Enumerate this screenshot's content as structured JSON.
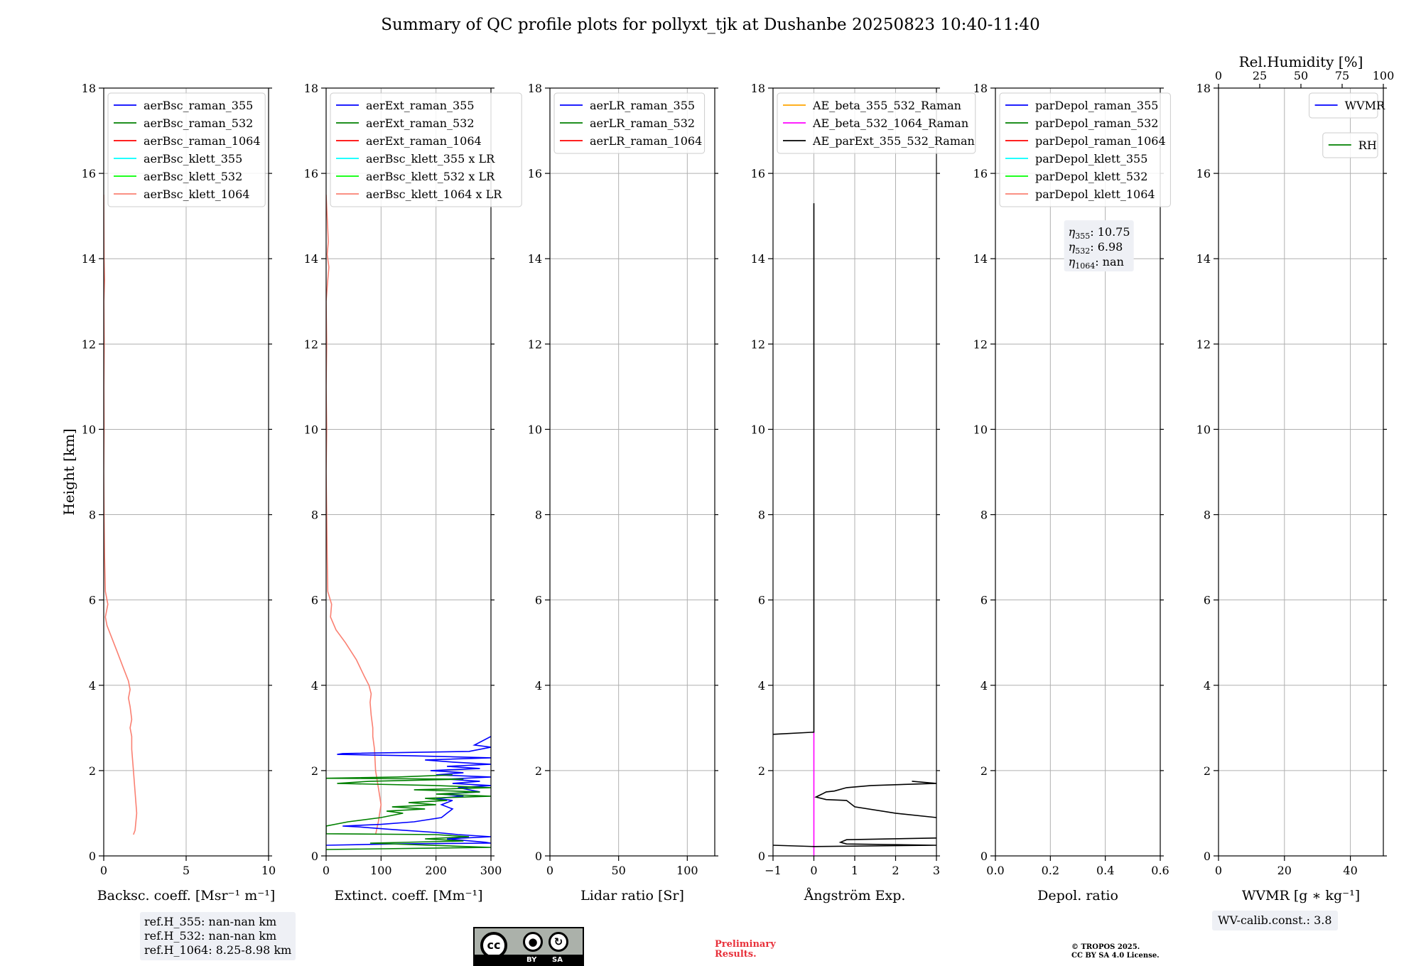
{
  "figure": {
    "title": "Summary of QC profile plots for pollyxt_tjk at Dushanbe 20250823 10:40-11:40",
    "ref_heights": [
      "ref.H_355: nan-nan km",
      "ref.H_532: nan-nan km",
      "ref.H_1064: 8.25-8.98 km"
    ],
    "wv_calib": "WV-calib.const.: 3.8",
    "preliminary": [
      "Preliminary",
      "Results."
    ],
    "copyright": [
      "© TROPOS 2025.",
      "CC BY SA 4.0 License."
    ],
    "license_logo": {
      "cc": "cc",
      "by": "BY",
      "sa": "SA"
    },
    "colors": {
      "blue": "#0000ff",
      "green": "#008000",
      "red": "#ff0000",
      "cyan": "#00ffff",
      "lime": "#00ff00",
      "salmon": "#fa8072",
      "orange": "#ffa500",
      "magenta": "#ff00ff",
      "black": "#000000",
      "grid": "#b0b0b0"
    }
  },
  "chart_data": [
    {
      "type": "line",
      "xlabel": "Backsc. coeff. [Msr⁻¹ m⁻¹]",
      "ylabel": "Height [km]",
      "xlim": [
        0,
        10
      ],
      "ylim": [
        0,
        18
      ],
      "xticks": [
        0,
        5,
        10
      ],
      "yticks": [
        0,
        2,
        4,
        6,
        8,
        10,
        12,
        14,
        16,
        18
      ],
      "grid": true,
      "legend_position": "top-left",
      "legend": [
        "aerBsc_raman_355",
        "aerBsc_raman_532",
        "aerBsc_raman_1064",
        "aerBsc_klett_355",
        "aerBsc_klett_532",
        "aerBsc_klett_1064"
      ],
      "legend_colors": [
        "#0000ff",
        "#008000",
        "#ff0000",
        "#00ffff",
        "#00ff00",
        "#fa8072"
      ],
      "series": [
        {
          "color": "#fa8072",
          "points": [
            [
              1.8,
              0.5
            ],
            [
              1.9,
              0.6
            ],
            [
              2.0,
              1.0
            ],
            [
              1.9,
              1.5
            ],
            [
              1.8,
              2.0
            ],
            [
              1.7,
              2.5
            ],
            [
              1.7,
              2.8
            ],
            [
              1.6,
              3.0
            ],
            [
              1.7,
              3.2
            ],
            [
              1.6,
              3.5
            ],
            [
              1.5,
              3.7
            ],
            [
              1.6,
              3.9
            ],
            [
              1.5,
              4.1
            ],
            [
              1.2,
              4.4
            ],
            [
              0.8,
              4.8
            ],
            [
              0.5,
              5.1
            ],
            [
              0.2,
              5.4
            ],
            [
              0.1,
              5.6
            ],
            [
              0.25,
              5.9
            ],
            [
              0.1,
              6.2
            ],
            [
              0.05,
              7.0
            ],
            [
              0.02,
              8.0
            ],
            [
              0.0,
              9.0
            ],
            [
              0.02,
              10.0
            ],
            [
              0.01,
              11.0
            ],
            [
              0.03,
              12.0
            ],
            [
              0.01,
              13.0
            ],
            [
              0.05,
              13.5
            ],
            [
              0.02,
              14.0
            ],
            [
              0.0,
              15.5
            ]
          ]
        }
      ]
    },
    {
      "type": "line",
      "xlabel": "Extinct. coeff. [Mm⁻¹]",
      "xlim": [
        0,
        300
      ],
      "ylim": [
        0,
        18
      ],
      "xticks": [
        0,
        100,
        200,
        300
      ],
      "yticks": [
        0,
        2,
        4,
        6,
        8,
        10,
        12,
        14,
        16,
        18
      ],
      "grid": true,
      "legend_position": "top-left",
      "legend": [
        "aerExt_raman_355",
        "aerExt_raman_532",
        "aerExt_raman_1064",
        "aerBsc_klett_355 x LR",
        "aerBsc_klett_532 x LR",
        "aerBsc_klett_1064 x LR"
      ],
      "legend_colors": [
        "#0000ff",
        "#008000",
        "#ff0000",
        "#00ffff",
        "#00ff00",
        "#fa8072"
      ],
      "series": [
        {
          "color": "#fa8072",
          "points": [
            [
              90,
              0.5
            ],
            [
              95,
              0.8
            ],
            [
              100,
              1.2
            ],
            [
              95,
              1.6
            ],
            [
              90,
              2.0
            ],
            [
              88,
              2.5
            ],
            [
              85,
              2.8
            ],
            [
              85,
              3.0
            ],
            [
              82,
              3.3
            ],
            [
              80,
              3.6
            ],
            [
              82,
              3.8
            ],
            [
              78,
              4.0
            ],
            [
              70,
              4.2
            ],
            [
              55,
              4.6
            ],
            [
              35,
              5.0
            ],
            [
              18,
              5.3
            ],
            [
              8,
              5.6
            ],
            [
              10,
              5.9
            ],
            [
              3,
              6.2
            ],
            [
              2,
              7.0
            ],
            [
              1,
              8.0
            ],
            [
              0,
              9.0
            ],
            [
              1,
              10.0
            ],
            [
              0,
              11.0
            ],
            [
              1,
              12.0
            ],
            [
              0,
              13.0
            ],
            [
              3,
              13.5
            ],
            [
              5,
              13.8
            ],
            [
              2,
              14.1
            ],
            [
              4,
              14.4
            ],
            [
              0,
              15.5
            ]
          ]
        },
        {
          "color": "#0000ff",
          "points": [
            [
              0,
              0.25
            ],
            [
              120,
              0.28
            ],
            [
              300,
              0.3
            ],
            [
              290,
              0.32
            ],
            [
              220,
              0.4
            ],
            [
              300,
              0.45
            ],
            [
              240,
              0.5
            ],
            [
              200,
              0.55
            ],
            [
              120,
              0.62
            ],
            [
              60,
              0.68
            ],
            [
              30,
              0.7
            ],
            [
              100,
              0.74
            ],
            [
              160,
              0.8
            ],
            [
              210,
              0.9
            ],
            [
              220,
              1.0
            ],
            [
              230,
              1.1
            ],
            [
              210,
              1.2
            ],
            [
              230,
              1.3
            ],
            [
              200,
              1.35
            ],
            [
              250,
              1.4
            ],
            [
              210,
              1.45
            ],
            [
              280,
              1.5
            ],
            [
              240,
              1.6
            ],
            [
              300,
              1.65
            ],
            [
              230,
              1.7
            ],
            [
              280,
              1.75
            ],
            [
              220,
              1.8
            ],
            [
              300,
              1.85
            ],
            [
              200,
              1.9
            ],
            [
              250,
              1.95
            ],
            [
              190,
              2.0
            ],
            [
              280,
              2.05
            ],
            [
              220,
              2.1
            ],
            [
              300,
              2.15
            ],
            [
              230,
              2.2
            ],
            [
              180,
              2.25
            ],
            [
              300,
              2.3
            ],
            [
              150,
              2.35
            ],
            [
              20,
              2.38
            ],
            [
              30,
              2.4
            ],
            [
              260,
              2.45
            ],
            [
              300,
              2.55
            ],
            [
              270,
              2.6
            ],
            [
              300,
              2.8
            ]
          ]
        },
        {
          "color": "#008000",
          "points": [
            [
              0,
              0.15
            ],
            [
              300,
              0.2
            ],
            [
              80,
              0.3
            ],
            [
              250,
              0.35
            ],
            [
              180,
              0.4
            ],
            [
              260,
              0.45
            ],
            [
              200,
              0.5
            ],
            [
              0,
              0.52
            ],
            [
              0,
              0.7
            ],
            [
              40,
              0.8
            ],
            [
              100,
              0.9
            ],
            [
              140,
              1.0
            ],
            [
              110,
              1.05
            ],
            [
              180,
              1.1
            ],
            [
              120,
              1.15
            ],
            [
              200,
              1.2
            ],
            [
              150,
              1.25
            ],
            [
              220,
              1.3
            ],
            [
              180,
              1.35
            ],
            [
              300,
              1.4
            ],
            [
              200,
              1.45
            ],
            [
              280,
              1.5
            ],
            [
              160,
              1.55
            ],
            [
              300,
              1.6
            ],
            [
              200,
              1.65
            ],
            [
              20,
              1.7
            ],
            [
              80,
              1.75
            ],
            [
              250,
              1.8
            ],
            [
              0,
              1.82
            ],
            [
              130,
              1.85
            ],
            [
              230,
              1.9
            ]
          ]
        }
      ]
    },
    {
      "type": "line",
      "xlabel": "Lidar ratio [Sr]",
      "xlim": [
        0,
        120
      ],
      "ylim": [
        0,
        18
      ],
      "xticks": [
        0,
        50,
        100
      ],
      "yticks": [
        0,
        2,
        4,
        6,
        8,
        10,
        12,
        14,
        16,
        18
      ],
      "grid": true,
      "legend_position": "top-left",
      "legend": [
        "aerLR_raman_355",
        "aerLR_raman_532",
        "aerLR_raman_1064"
      ],
      "legend_colors": [
        "#0000ff",
        "#008000",
        "#ff0000"
      ],
      "series": []
    },
    {
      "type": "line",
      "xlabel": "Ångström Exp.",
      "xlim": [
        -1,
        3
      ],
      "ylim": [
        0,
        18
      ],
      "xticks": [
        -1,
        0,
        1,
        2,
        3
      ],
      "xticklabels": [
        "−1",
        "0",
        "1",
        "2",
        "3"
      ],
      "yticks": [
        0,
        2,
        4,
        6,
        8,
        10,
        12,
        14,
        16,
        18
      ],
      "grid": true,
      "legend_position": "top-left",
      "legend": [
        "AE_beta_355_532_Raman",
        "AE_beta_532_1064_Raman",
        "AE_parExt_355_532_Raman"
      ],
      "legend_colors": [
        "#ffa500",
        "#ff00ff",
        "#000000"
      ],
      "series": [
        {
          "color": "#ff00ff",
          "points": [
            [
              0,
              0
            ],
            [
              0,
              2.9
            ]
          ]
        },
        {
          "color": "#000000",
          "points": [
            [
              0,
              15.3
            ],
            [
              0,
              2.9
            ],
            [
              -1,
              2.85
            ]
          ]
        },
        {
          "color": "#000000",
          "points": [
            [
              -1,
              0.25
            ],
            [
              0,
              0.22
            ],
            [
              3,
              0.25
            ],
            [
              0.8,
              0.28
            ],
            [
              0.65,
              0.32
            ],
            [
              0.8,
              0.38
            ],
            [
              3,
              0.42
            ]
          ]
        },
        {
          "color": "#000000",
          "points": [
            [
              3,
              0.9
            ],
            [
              2.0,
              1.0
            ],
            [
              1.0,
              1.15
            ],
            [
              0.8,
              1.3
            ],
            [
              0.3,
              1.32
            ],
            [
              0.05,
              1.38
            ],
            [
              0.2,
              1.45
            ],
            [
              0.3,
              1.5
            ],
            [
              0.5,
              1.52
            ],
            [
              0.8,
              1.6
            ],
            [
              1.4,
              1.65
            ],
            [
              3,
              1.7
            ],
            [
              2.4,
              1.75
            ]
          ]
        }
      ]
    },
    {
      "type": "line",
      "xlabel": "Depol. ratio",
      "xlim": [
        0,
        0.6
      ],
      "ylim": [
        0,
        18
      ],
      "xticks": [
        0,
        0.2,
        0.4,
        0.6
      ],
      "xticklabels": [
        "0.0",
        "0.2",
        "0.4",
        "0.6"
      ],
      "yticks": [
        0,
        2,
        4,
        6,
        8,
        10,
        12,
        14,
        16,
        18
      ],
      "grid": true,
      "legend_position": "top-left",
      "legend": [
        "parDepol_raman_355",
        "parDepol_raman_532",
        "parDepol_raman_1064",
        "parDepol_klett_355",
        "parDepol_klett_532",
        "parDepol_klett_1064"
      ],
      "legend_colors": [
        "#0000ff",
        "#008000",
        "#ff0000",
        "#00ffff",
        "#00ff00",
        "#fa8072"
      ],
      "annotation": {
        "lines": [
          [
            "η",
            "355",
            ": 10.75"
          ],
          [
            "η",
            "532",
            ": 6.98"
          ],
          [
            "η",
            "1064",
            ": nan"
          ]
        ]
      },
      "series": []
    },
    {
      "type": "line",
      "xlabel": "WVMR [g ∗ kg⁻¹]",
      "xlim": [
        0,
        50
      ],
      "ylim": [
        0,
        18
      ],
      "xticks": [
        0,
        20,
        40
      ],
      "yticks": [
        0,
        2,
        4,
        6,
        8,
        10,
        12,
        14,
        16,
        18
      ],
      "grid": true,
      "legend_position": "top-right",
      "legend": [
        "WVMR"
      ],
      "legend_colors": [
        "#0000ff"
      ],
      "legend2": [
        "RH"
      ],
      "legend2_colors": [
        "#008000"
      ],
      "top_axis": {
        "label": "Rel.Humidity [%]",
        "lim": [
          0,
          100
        ],
        "ticks": [
          0,
          25,
          50,
          75,
          100
        ]
      },
      "series": []
    }
  ]
}
